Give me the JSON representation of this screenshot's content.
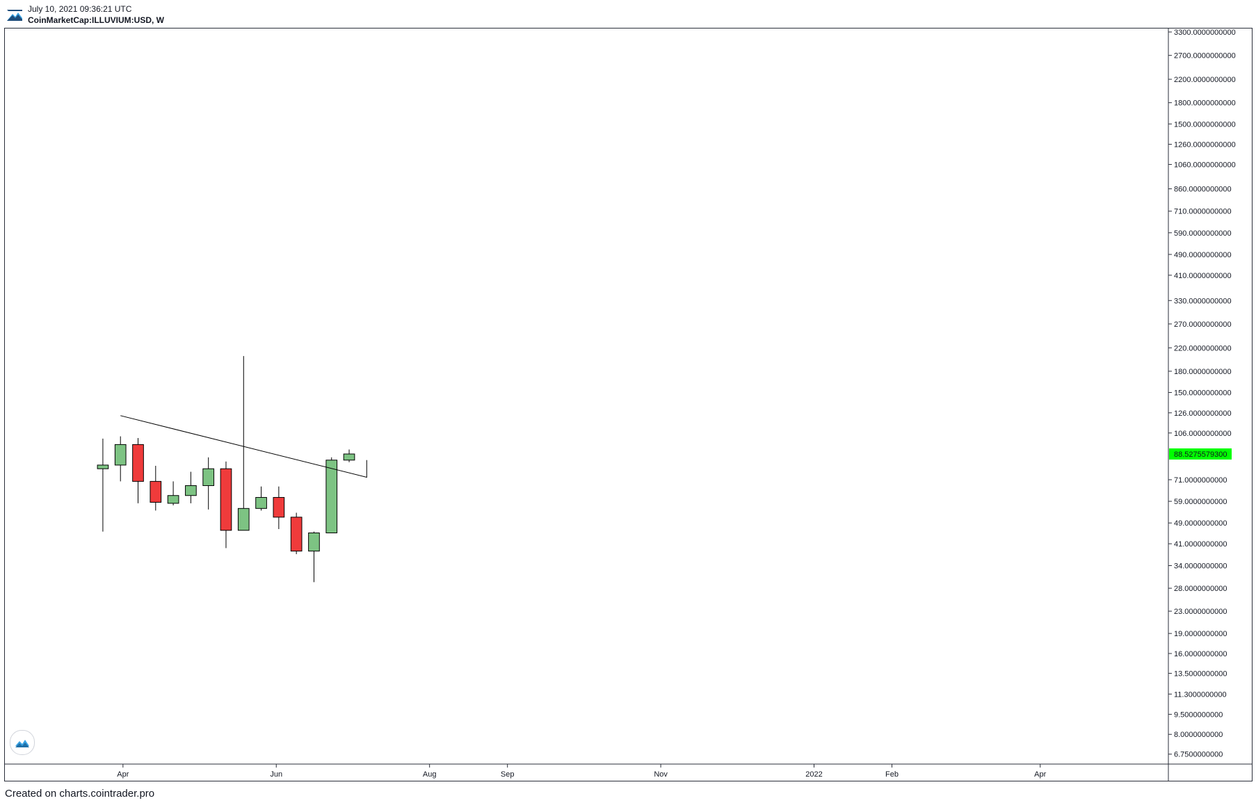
{
  "header": {
    "date": "July 10, 2021 09:36:21 UTC",
    "symbol": "CoinMarketCap:ILLUVIUM:USD, W"
  },
  "footer": {
    "credit": "Created on charts.cointrader.pro"
  },
  "colors": {
    "up": "#7dc383",
    "down": "#ef3b3b",
    "last_price_bg": "#00ff00",
    "axis": "#2a2e39"
  },
  "chart_data": {
    "type": "candlestick",
    "y_scale": "log",
    "ylim": [
      6.2,
      3400
    ],
    "y_ticks": [
      {
        "label": "3300.0000000000",
        "value": 3300
      },
      {
        "label": "2700.0000000000",
        "value": 2700
      },
      {
        "label": "2200.0000000000",
        "value": 2200
      },
      {
        "label": "1800.0000000000",
        "value": 1800
      },
      {
        "label": "1500.0000000000",
        "value": 1500
      },
      {
        "label": "1260.0000000000",
        "value": 1260
      },
      {
        "label": "1060.0000000000",
        "value": 1060
      },
      {
        "label": "860.0000000000",
        "value": 860
      },
      {
        "label": "710.0000000000",
        "value": 710
      },
      {
        "label": "590.0000000000",
        "value": 590
      },
      {
        "label": "490.0000000000",
        "value": 490
      },
      {
        "label": "410.0000000000",
        "value": 410
      },
      {
        "label": "330.0000000000",
        "value": 330
      },
      {
        "label": "270.0000000000",
        "value": 270
      },
      {
        "label": "220.0000000000",
        "value": 220
      },
      {
        "label": "180.0000000000",
        "value": 180
      },
      {
        "label": "150.0000000000",
        "value": 150
      },
      {
        "label": "126.0000000000",
        "value": 126
      },
      {
        "label": "106.0000000000",
        "value": 106
      },
      {
        "label": "71.0000000000",
        "value": 71
      },
      {
        "label": "59.0000000000",
        "value": 59
      },
      {
        "label": "49.0000000000",
        "value": 49
      },
      {
        "label": "41.0000000000",
        "value": 41
      },
      {
        "label": "34.0000000000",
        "value": 34
      },
      {
        "label": "28.0000000000",
        "value": 28
      },
      {
        "label": "23.0000000000",
        "value": 23
      },
      {
        "label": "19.0000000000",
        "value": 19
      },
      {
        "label": "16.0000000000",
        "value": 16
      },
      {
        "label": "13.5000000000",
        "value": 13.5
      },
      {
        "label": "11.3000000000",
        "value": 11.3
      },
      {
        "label": "9.5000000000",
        "value": 9.5
      },
      {
        "label": "8.0000000000",
        "value": 8.0
      },
      {
        "label": "6.7500000000",
        "value": 6.75
      }
    ],
    "last_price": {
      "label": "88.5275579300",
      "value": 88.53
    },
    "x_ticks": [
      {
        "label": "Apr",
        "date": "2021-04-01"
      },
      {
        "label": "Jun",
        "date": "2021-06-01"
      },
      {
        "label": "Aug",
        "date": "2021-08-01"
      },
      {
        "label": "Sep",
        "date": "2021-09-01"
      },
      {
        "label": "Nov",
        "date": "2021-11-01"
      },
      {
        "label": "2022",
        "date": "2022-01-01"
      },
      {
        "label": "Feb",
        "date": "2022-02-01"
      },
      {
        "label": "Apr",
        "date": "2022-04-01"
      }
    ],
    "xlim": [
      "2021-02-13",
      "2022-05-22"
    ],
    "candles": [
      {
        "date": "2021-03-24",
        "open": 78.0,
        "high": 101.0,
        "low": 45.5,
        "close": 80.5
      },
      {
        "date": "2021-03-31",
        "open": 80.5,
        "high": 103.0,
        "low": 70.0,
        "close": 96.0
      },
      {
        "date": "2021-04-07",
        "open": 96.0,
        "high": 101.5,
        "low": 58.0,
        "close": 70.0
      },
      {
        "date": "2021-04-14",
        "open": 70.0,
        "high": 80.0,
        "low": 54.5,
        "close": 58.5
      },
      {
        "date": "2021-04-21",
        "open": 58.0,
        "high": 70.0,
        "low": 57.0,
        "close": 62.0
      },
      {
        "date": "2021-04-28",
        "open": 62.0,
        "high": 76.0,
        "low": 58.0,
        "close": 67.5
      },
      {
        "date": "2021-05-05",
        "open": 67.5,
        "high": 86.0,
        "low": 55.0,
        "close": 78.0
      },
      {
        "date": "2021-05-12",
        "open": 78.0,
        "high": 83.0,
        "low": 39.5,
        "close": 46.0
      },
      {
        "date": "2021-05-19",
        "open": 46.0,
        "high": 205.0,
        "low": 46.0,
        "close": 55.5
      },
      {
        "date": "2021-05-26",
        "open": 55.5,
        "high": 67.0,
        "low": 54.5,
        "close": 61.0
      },
      {
        "date": "2021-06-02",
        "open": 61.0,
        "high": 67.0,
        "low": 46.5,
        "close": 51.5
      },
      {
        "date": "2021-06-09",
        "open": 51.5,
        "high": 53.5,
        "low": 37.5,
        "close": 38.5
      },
      {
        "date": "2021-06-16",
        "open": 38.5,
        "high": 45.5,
        "low": 29.5,
        "close": 45.0
      },
      {
        "date": "2021-06-23",
        "open": 45.0,
        "high": 86.0,
        "low": 45.0,
        "close": 84.0
      },
      {
        "date": "2021-06-30",
        "open": 84.0,
        "high": 92.0,
        "low": 82.5,
        "close": 88.53
      }
    ],
    "trendline": [
      {
        "date": "2021-03-31",
        "value": 123.0
      },
      {
        "date": "2021-07-07",
        "value": 72.5
      },
      {
        "date": "2021-07-07",
        "value": 84.0
      }
    ]
  }
}
